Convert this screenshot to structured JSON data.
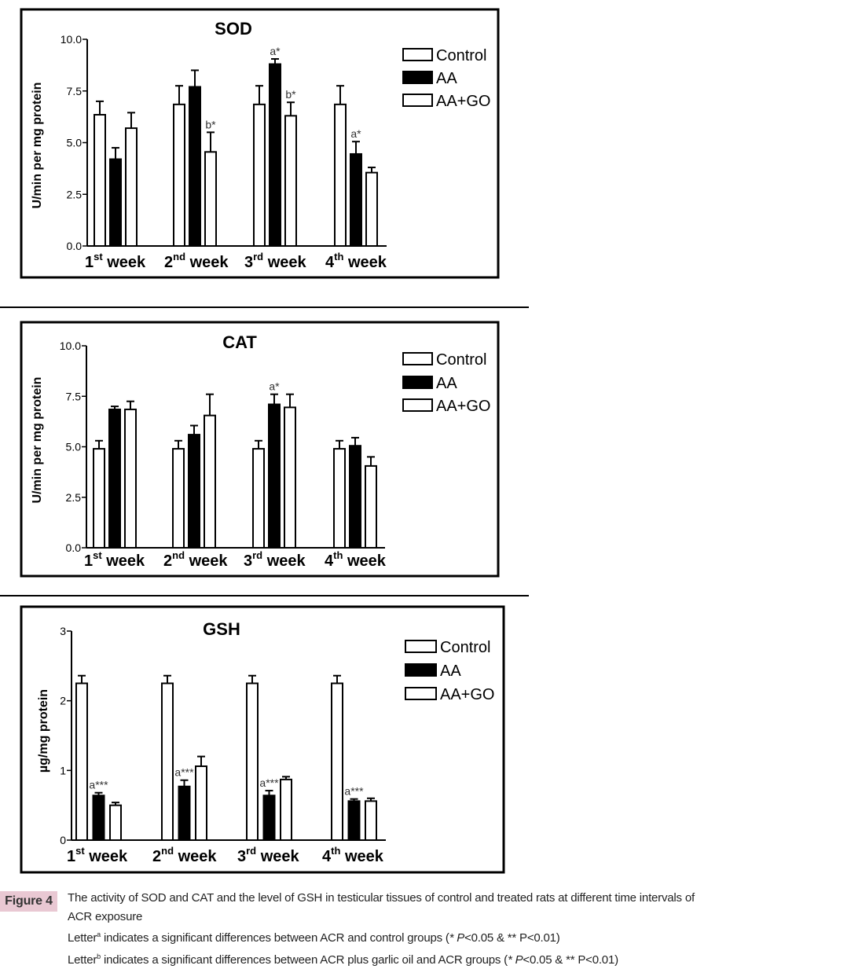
{
  "chart_data": [
    {
      "type": "bar",
      "title": "SOD",
      "ylabel": "U/min per mg protein",
      "xlabel": "",
      "ylim": [
        0,
        10
      ],
      "yticks": [
        "0.0",
        "2.5",
        "5.0",
        "7.5",
        "10.0"
      ],
      "ytick_values": [
        0,
        2.5,
        5,
        7.5,
        10
      ],
      "categories": [
        {
          "num": "1",
          "sup": "st",
          "word": "week"
        },
        {
          "num": "2",
          "sup": "nd",
          "word": "week"
        },
        {
          "num": "3",
          "sup": "rd",
          "word": "week"
        },
        {
          "num": "4",
          "sup": "th",
          "word": "week"
        }
      ],
      "legend": [
        "Control",
        "AA",
        "AA+GO"
      ],
      "legend_position": "top-right",
      "series": [
        {
          "name": "Control",
          "values": [
            6.35,
            6.85,
            6.85,
            6.85
          ],
          "errors": [
            0.65,
            0.9,
            0.9,
            0.9
          ],
          "annotations": [
            "",
            "",
            "",
            ""
          ]
        },
        {
          "name": "AA",
          "values": [
            4.2,
            7.7,
            8.8,
            4.45
          ],
          "errors": [
            0.55,
            0.8,
            0.25,
            0.6
          ],
          "annotations": [
            "",
            "",
            "a*",
            "a*"
          ]
        },
        {
          "name": "AA+GO",
          "values": [
            5.7,
            4.55,
            6.3,
            3.55
          ],
          "errors": [
            0.75,
            0.95,
            0.65,
            0.25
          ],
          "annotations": [
            "",
            "b*",
            "b*",
            ""
          ]
        }
      ]
    },
    {
      "type": "bar",
      "title": "CAT",
      "ylabel": "U/min per mg protein",
      "xlabel": "",
      "ylim": [
        0,
        10
      ],
      "yticks": [
        "0.0",
        "2.5",
        "5.0",
        "7.5",
        "10.0"
      ],
      "ytick_values": [
        0,
        2.5,
        5,
        7.5,
        10
      ],
      "categories": [
        {
          "num": "1",
          "sup": "st",
          "word": "week"
        },
        {
          "num": "2",
          "sup": "nd",
          "word": "week"
        },
        {
          "num": "3",
          "sup": "rd",
          "word": "week"
        },
        {
          "num": "4",
          "sup": "th",
          "word": "week"
        }
      ],
      "legend": [
        "Control",
        "AA",
        "AA+GO"
      ],
      "legend_position": "top-right",
      "series": [
        {
          "name": "Control",
          "values": [
            4.9,
            4.9,
            4.9,
            4.9
          ],
          "errors": [
            0.4,
            0.4,
            0.4,
            0.4
          ],
          "annotations": [
            "",
            "",
            "",
            ""
          ]
        },
        {
          "name": "AA",
          "values": [
            6.85,
            5.6,
            7.1,
            5.05
          ],
          "errors": [
            0.15,
            0.45,
            0.5,
            0.4
          ],
          "annotations": [
            "",
            "",
            "a*",
            ""
          ]
        },
        {
          "name": "AA+GO",
          "values": [
            6.85,
            6.55,
            6.95,
            4.05
          ],
          "errors": [
            0.4,
            1.05,
            0.65,
            0.45
          ],
          "annotations": [
            "",
            "",
            "",
            ""
          ]
        }
      ]
    },
    {
      "type": "bar",
      "title": "GSH",
      "ylabel": "µg/mg protein",
      "xlabel": "",
      "ylim": [
        0,
        3
      ],
      "yticks": [
        "0",
        "1",
        "2",
        "3"
      ],
      "ytick_values": [
        0,
        1,
        2,
        3
      ],
      "categories": [
        {
          "num": "1",
          "sup": "st",
          "word": "week"
        },
        {
          "num": "2",
          "sup": "nd",
          "word": "week"
        },
        {
          "num": "3",
          "sup": "rd",
          "word": "week"
        },
        {
          "num": "4",
          "sup": "th",
          "word": "week"
        }
      ],
      "legend": [
        "Control",
        "AA",
        "AA+GO"
      ],
      "legend_position": "top-right",
      "series": [
        {
          "name": "Control",
          "values": [
            2.25,
            2.25,
            2.25,
            2.25
          ],
          "errors": [
            0.11,
            0.11,
            0.11,
            0.11
          ],
          "annotations": [
            "",
            "",
            "",
            ""
          ]
        },
        {
          "name": "AA",
          "values": [
            0.64,
            0.77,
            0.64,
            0.56
          ],
          "errors": [
            0.04,
            0.09,
            0.07,
            0.03
          ],
          "annotations": [
            "a***",
            "a***",
            "a***",
            "a***"
          ]
        },
        {
          "name": "AA+GO",
          "values": [
            0.5,
            1.06,
            0.87,
            0.56
          ],
          "errors": [
            0.04,
            0.14,
            0.04,
            0.04
          ],
          "annotations": [
            "",
            "",
            "",
            ""
          ]
        }
      ]
    }
  ],
  "colors": {
    "Control": "#ffffff",
    "AA": "#000000",
    "AA+GO": "#ffffff",
    "figure_label_bg": "#e9c8d3"
  },
  "caption": {
    "label": "Figure 4",
    "line1": "The activity of SOD and CAT and the level of GSH in testicular tissues of control and treated rats at different time intervals of",
    "line2": "ACR exposure",
    "line3": {
      "pre": "Letter",
      "sup": "a",
      "mid": " indicates a significant differences between ACR and control groups (",
      "italic": "* P",
      "post": "<0.05 & ** P<0.01)"
    },
    "line4": {
      "pre": "Letter",
      "sup": "b",
      "mid": " indicates a significant differences between ACR plus garlic oil and ACR groups (",
      "italic": "* P",
      "post": "<0.05 & ** P<0.01)"
    }
  }
}
